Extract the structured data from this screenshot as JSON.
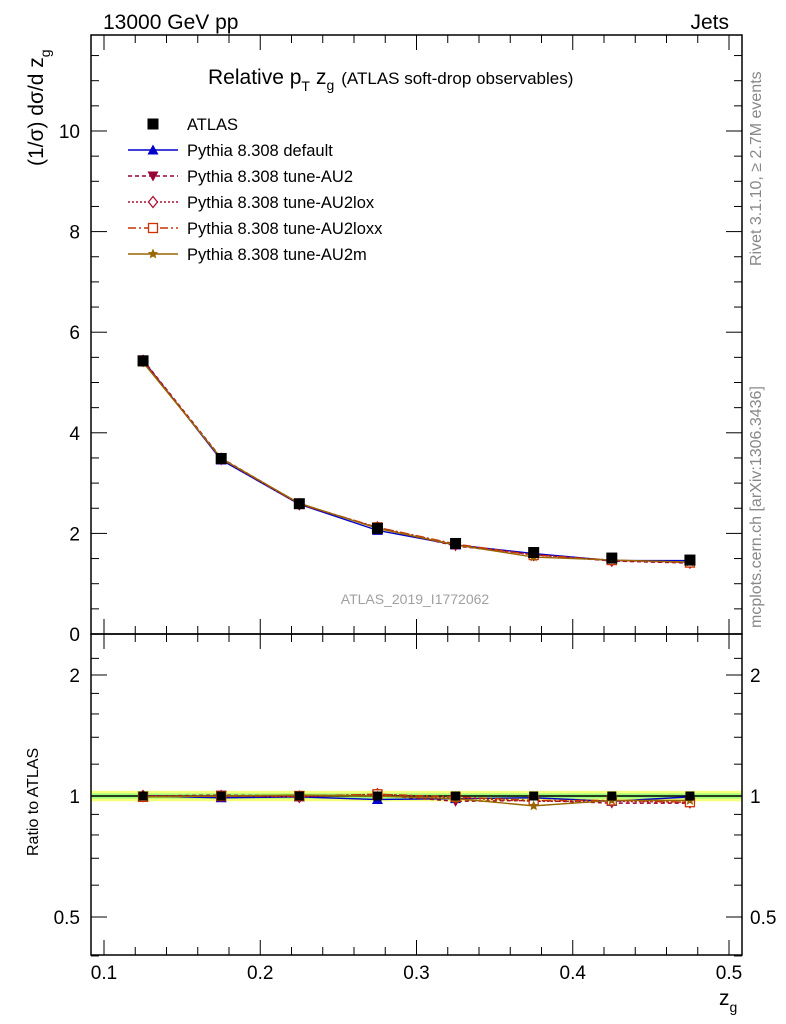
{
  "header": {
    "left": "13000 GeV pp",
    "right": "Jets"
  },
  "title": {
    "main": "Relative p",
    "sub": "T",
    "var": "z",
    "var_sub": "g",
    "note": "(ATLAS soft-drop observables)"
  },
  "ylabel_main": {
    "prefix": "(1/σ) dσ/d z",
    "sub": "g"
  },
  "ylabel_ratio": "Ratio to ATLAS",
  "xlabel": {
    "var": "z",
    "sub": "g"
  },
  "watermark": "ATLAS_2019_I1772062",
  "side_text": {
    "rivet": "Rivet 3.1.10, ≥ 2.7M events",
    "mcplots": "mcplots.cern.ch [arXiv:1306.3436]"
  },
  "colors": {
    "atlas": "#000000",
    "default": "#0000cc",
    "au2": "#990033",
    "au2lox": "#aa1133",
    "au2loxx": "#cc3300",
    "au2m": "#996600",
    "band_inner": "#9eff7a",
    "band_outer": "#f5ff7a"
  },
  "chart_data": [
    {
      "type": "line",
      "panel": "main",
      "x": [
        0.125,
        0.175,
        0.225,
        0.275,
        0.325,
        0.375,
        0.425,
        0.475
      ],
      "xlim": [
        0.1,
        0.5
      ],
      "ylim": [
        0,
        12
      ],
      "xticks": [
        "0.1",
        "0.2",
        "0.3",
        "0.4",
        "0.5"
      ],
      "yticks": [
        "0",
        "2",
        "4",
        "6",
        "8",
        "10"
      ],
      "series": [
        {
          "name": "ATLAS",
          "key": "atlas",
          "marker": "square",
          "dash": "none",
          "values": [
            5.43,
            3.49,
            2.59,
            2.1,
            1.8,
            1.62,
            1.51,
            1.47
          ]
        },
        {
          "name": "Pythia 8.308 default",
          "key": "default",
          "marker": "triangle-up",
          "dash": "solid",
          "values": [
            5.44,
            3.46,
            2.58,
            2.06,
            1.77,
            1.6,
            1.46,
            1.46
          ]
        },
        {
          "name": "Pythia 8.308 tune-AU2",
          "key": "au2",
          "marker": "triangle-down",
          "dash": "4,3",
          "values": [
            5.45,
            3.5,
            2.59,
            2.11,
            1.75,
            1.58,
            1.45,
            1.41
          ]
        },
        {
          "name": "Pythia 8.308 tune-AU2lox",
          "key": "au2lox",
          "marker": "diamond-open",
          "dash": "2,2",
          "values": [
            5.43,
            3.48,
            2.58,
            2.12,
            1.78,
            1.57,
            1.46,
            1.42
          ]
        },
        {
          "name": "Pythia 8.308 tune-AU2loxx",
          "key": "au2loxx",
          "marker": "square-open",
          "dash": "8,3,2,3",
          "values": [
            5.42,
            3.49,
            2.59,
            2.12,
            1.79,
            1.57,
            1.47,
            1.42
          ]
        },
        {
          "name": "Pythia 8.308 tune-AU2m",
          "key": "au2m",
          "marker": "star",
          "dash": "solid",
          "values": [
            5.4,
            3.49,
            2.6,
            2.1,
            1.77,
            1.53,
            1.47,
            1.43
          ]
        }
      ]
    },
    {
      "type": "line",
      "panel": "ratio",
      "x": [
        0.125,
        0.175,
        0.225,
        0.275,
        0.325,
        0.375,
        0.425,
        0.475
      ],
      "xlim": [
        0.1,
        0.5
      ],
      "ylim": [
        0.38,
        2.35
      ],
      "yticks": [
        "0.5",
        "1",
        "2"
      ],
      "ylabel": "Ratio to ATLAS",
      "series": [
        {
          "name": "Pythia 8.308 default",
          "key": "default",
          "values": [
            1.0,
            0.99,
            0.995,
            0.98,
            0.985,
            0.99,
            0.97,
            0.995
          ]
        },
        {
          "name": "Pythia 8.308 tune-AU2",
          "key": "au2",
          "values": [
            1.0,
            1.005,
            1.0,
            1.005,
            0.97,
            0.975,
            0.96,
            0.96
          ]
        },
        {
          "name": "Pythia 8.308 tune-AU2lox",
          "key": "au2lox",
          "values": [
            1.0,
            1.0,
            0.995,
            1.01,
            0.99,
            0.97,
            0.97,
            0.965
          ]
        },
        {
          "name": "Pythia 8.308 tune-AU2loxx",
          "key": "au2loxx",
          "values": [
            0.995,
            1.0,
            1.0,
            1.01,
            0.995,
            0.975,
            0.975,
            0.965
          ]
        },
        {
          "name": "Pythia 8.308 tune-AU2m",
          "key": "au2m",
          "values": [
            0.995,
            1.0,
            1.005,
            1.0,
            0.985,
            0.945,
            0.975,
            0.975
          ]
        }
      ]
    }
  ]
}
